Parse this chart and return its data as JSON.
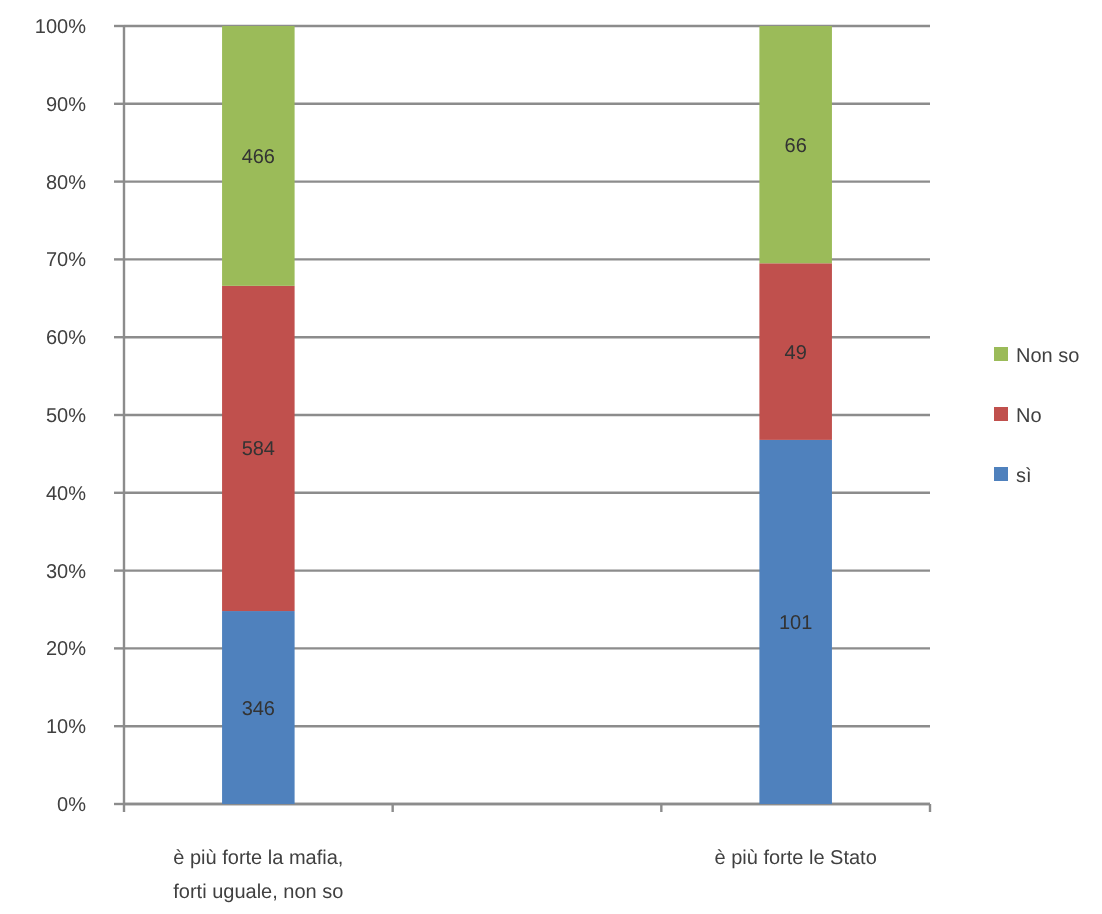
{
  "chart_data": {
    "type": "bar",
    "stacked": true,
    "categories": [
      "è più forte la mafia, forti uguale, non so",
      null,
      "è più forte le Stato"
    ],
    "series": [
      {
        "name": "sì",
        "color": "#4f81bd",
        "values": [
          24.8,
          null,
          46.8
        ]
      },
      {
        "name": "No",
        "color": "#c0504d",
        "values": [
          41.8,
          null,
          22.7
        ]
      },
      {
        "name": "Non so",
        "color": "#9bbb59",
        "values": [
          33.4,
          null,
          30.5
        ]
      }
    ],
    "annotations": [
      "346",
      "101",
      "584",
      "49",
      "466",
      "66"
    ],
    "ylim": [
      0,
      100
    ],
    "yticks": [
      {
        "value": 0,
        "label": "0%"
      },
      {
        "value": 10,
        "label": "10%"
      },
      {
        "value": 20,
        "label": "20%"
      },
      {
        "value": 30,
        "label": "30%"
      },
      {
        "value": 40,
        "label": "40%"
      },
      {
        "value": 50,
        "label": "50%"
      },
      {
        "value": 60,
        "label": "60%"
      },
      {
        "value": 70,
        "label": "70%"
      },
      {
        "value": 80,
        "label": "80%"
      },
      {
        "value": 90,
        "label": "90%"
      },
      {
        "value": 100,
        "label": "100%"
      }
    ],
    "grid": "y",
    "legend": "right"
  }
}
